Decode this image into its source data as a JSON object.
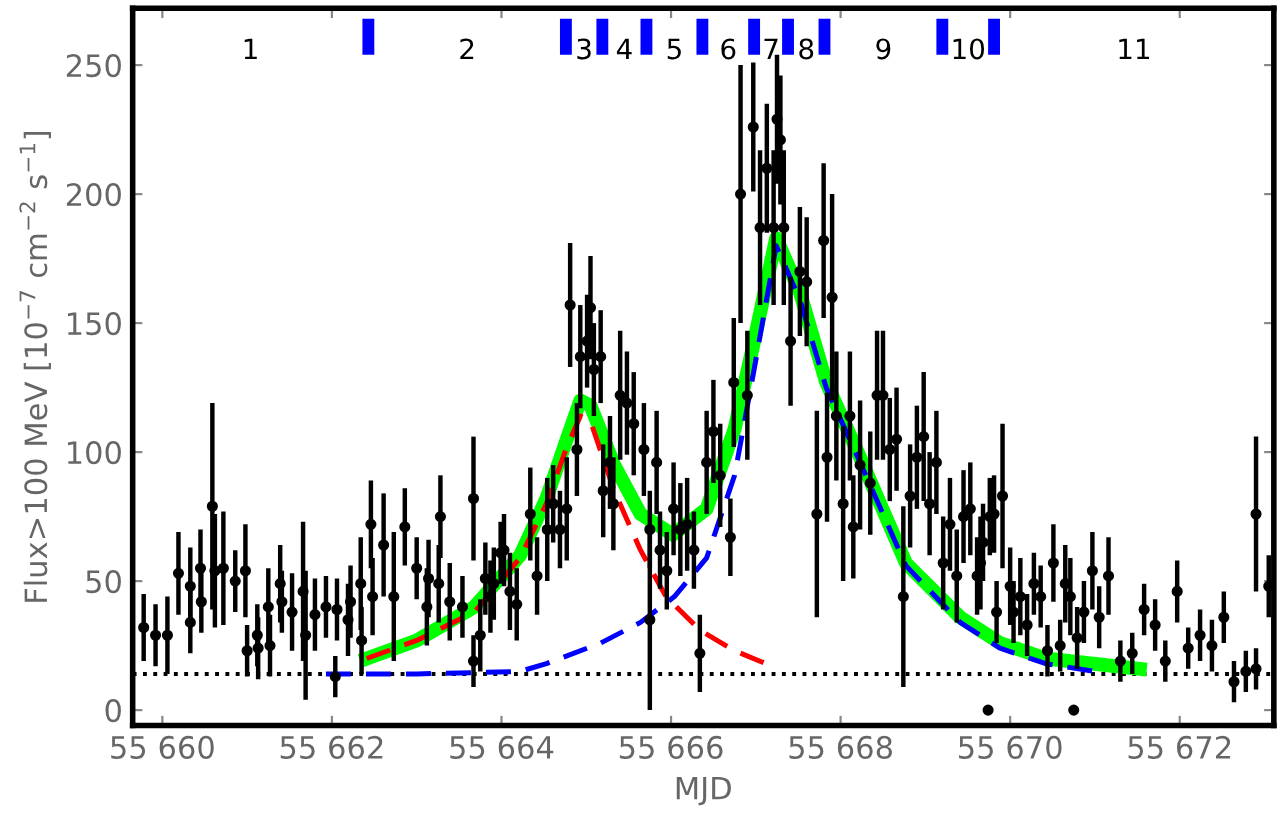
{
  "chart_data": {
    "type": "scatter",
    "xlabel": "MJD",
    "ylabel": "Flux>100 MeV [10$^{−7}$ cm$^{−2}$ s$^{−1}$]",
    "xlim": [
      55659.65,
      55673.11
    ],
    "ylim": [
      -6,
      272
    ],
    "xticks": [
      {
        "value": 55660,
        "label": "55 660"
      },
      {
        "value": 55662,
        "label": "55 662"
      },
      {
        "value": 55664,
        "label": "55 664"
      },
      {
        "value": 55666,
        "label": "55 666"
      },
      {
        "value": 55668,
        "label": "55 668"
      },
      {
        "value": 55670,
        "label": "55 670"
      },
      {
        "value": 55672,
        "label": "55 672"
      }
    ],
    "yticks": [
      0,
      50,
      100,
      150,
      200,
      250
    ],
    "grid": false,
    "ref_lines": [
      {
        "axis": "y",
        "value": 14,
        "color": "#000000",
        "line_style": "dotted"
      }
    ],
    "annotations": [
      "1",
      "2",
      "3",
      "4",
      "5",
      "6",
      "7",
      "8",
      "9",
      "10",
      "11"
    ],
    "series": [
      {
        "type": "bar",
        "color": "#0000ff",
        "x": [
          55662.43,
          55664.76,
          55665.19,
          55665.71,
          55666.37,
          55666.98,
          55667.38,
          55667.81,
          55669.2,
          55669.81
        ],
        "base": [
          254,
          254,
          254,
          254,
          254,
          254,
          254,
          254,
          254,
          254
        ],
        "values": [
          14,
          14,
          14,
          14,
          14,
          14,
          14,
          14,
          14,
          14
        ]
      },
      {
        "color": "#000000",
        "x": [
          55659.78,
          55659.92,
          55660.06,
          55660.19,
          55660.33,
          55660.33,
          55660.45,
          55660.46,
          55660.59,
          55660.62,
          55660.72,
          55660.86,
          55660.98,
          55661.0,
          55661.12,
          55661.13,
          55661.25,
          55661.27,
          55661.39,
          55661.41,
          55661.53,
          55661.66,
          55661.69,
          55661.8,
          55661.93,
          55662.04,
          55662.06,
          55662.19,
          55662.22,
          55662.34,
          55662.35,
          55662.46,
          55662.48,
          55662.61,
          55662.73,
          55662.86,
          55663.0,
          55663.12,
          55663.14,
          55663.26,
          55663.28,
          55663.39,
          55663.54,
          55663.67,
          55663.67,
          55663.75,
          55663.81,
          55663.87,
          55663.91,
          55663.99,
          55664.03,
          55664.1,
          55664.18,
          55664.34,
          55664.42,
          55664.54,
          55664.61,
          55664.69,
          55664.77,
          55664.81,
          55664.89,
          55664.93,
          55665.01,
          55665.05,
          55665.09,
          55665.17,
          55665.2,
          55665.28,
          55665.32,
          55665.4,
          55665.48,
          55665.56,
          55665.68,
          55665.75,
          55665.75,
          55665.83,
          55665.87,
          55665.95,
          55666.03,
          55666.11,
          55666.19,
          55666.27,
          55666.34,
          55666.42,
          55666.5,
          55666.58,
          55666.7,
          55666.74,
          55666.82,
          55666.9,
          55666.97,
          55667.05,
          55667.13,
          55667.21,
          55667.25,
          55667.29,
          55667.33,
          55667.41,
          55667.52,
          55667.6,
          55667.72,
          55667.8,
          55667.84,
          55667.9,
          55667.95,
          55668.03,
          55668.11,
          55668.15,
          55668.23,
          55668.35,
          55668.43,
          55668.5,
          55668.58,
          55668.66,
          55668.74,
          55668.82,
          55668.9,
          55668.98,
          55669.05,
          55669.13,
          55669.21,
          55669.29,
          55669.37,
          55669.45,
          55669.53,
          55669.61,
          55669.65,
          55669.68,
          55669.76,
          55669.81,
          55669.84,
          55669.91,
          55670.0,
          55670.04,
          55670.12,
          55670.2,
          55670.28,
          55670.36,
          55670.44,
          55670.51,
          55670.59,
          55670.65,
          55670.71,
          55670.79,
          55670.87,
          55670.97,
          55671.05,
          55671.16,
          55671.3,
          55671.44,
          55671.58,
          55671.71,
          55671.83,
          55671.97,
          55672.1,
          55672.24,
          55672.38,
          55672.52,
          55672.64,
          55672.78,
          55672.9,
          55672.9,
          55673.05
        ],
        "values": [
          32,
          29,
          29,
          53,
          48,
          34,
          55,
          42,
          79,
          54,
          55,
          50,
          54,
          23,
          29,
          24,
          40,
          25,
          49,
          42,
          38,
          46,
          29,
          37,
          40,
          13,
          39,
          35,
          42,
          49,
          27,
          72,
          44,
          64,
          44,
          71,
          55,
          40,
          51,
          49,
          75,
          42,
          40,
          82,
          19,
          29,
          51,
          44,
          49,
          61,
          62,
          46,
          41,
          76,
          52,
          70,
          80,
          70,
          78,
          157,
          101,
          137,
          143,
          156,
          132,
          137,
          85,
          96,
          80,
          122,
          119,
          111,
          101,
          70,
          35,
          96,
          62,
          54,
          78,
          70,
          72,
          62,
          22,
          96,
          108,
          91,
          67,
          127,
          200,
          122,
          226,
          187,
          210,
          187,
          229,
          221,
          187,
          143,
          170,
          166,
          76,
          182,
          98,
          160,
          114,
          80,
          114,
          71,
          95,
          88,
          122,
          122,
          101,
          105,
          44,
          83,
          98,
          106,
          80,
          96,
          57,
          72,
          52,
          75,
          78,
          52,
          57,
          65,
          75,
          76,
          38,
          83,
          48,
          38,
          44,
          33,
          49,
          44,
          23,
          57,
          25,
          49,
          44,
          28,
          38,
          54,
          36,
          52,
          19,
          22,
          39,
          33,
          19,
          46,
          24,
          29,
          25,
          36,
          11,
          15,
          76,
          16,
          48
        ],
        "errors": [
          13,
          12,
          15,
          16,
          15,
          12,
          15,
          12,
          40,
          22,
          22,
          12,
          18,
          10,
          12,
          12,
          15,
          12,
          15,
          12,
          15,
          27,
          25,
          14,
          12,
          8,
          12,
          14,
          14,
          18,
          13,
          17,
          15,
          20,
          25,
          15,
          12,
          15,
          15,
          15,
          16,
          15,
          12,
          24,
          10,
          14,
          14,
          14,
          14,
          12,
          14,
          15,
          14,
          18,
          15,
          20,
          15,
          15,
          20,
          24,
          18,
          20,
          18,
          20,
          18,
          18,
          18,
          18,
          18,
          25,
          20,
          20,
          18,
          15,
          35,
          20,
          15,
          15,
          18,
          18,
          18,
          15,
          15,
          20,
          20,
          20,
          15,
          25,
          50,
          25,
          25,
          30,
          25,
          30,
          25,
          25,
          30,
          25,
          25,
          25,
          40,
          30,
          25,
          40,
          25,
          30,
          25,
          20,
          25,
          20,
          25,
          25,
          20,
          20,
          35,
          20,
          20,
          25,
          20,
          20,
          18,
          18,
          18,
          18,
          18,
          15,
          18,
          15,
          15,
          15,
          12,
          28,
          15,
          12,
          15,
          12,
          12,
          12,
          10,
          15,
          10,
          15,
          15,
          12,
          12,
          15,
          12,
          15,
          8,
          8,
          10,
          10,
          8,
          12,
          8,
          10,
          10,
          10,
          8,
          8,
          30,
          8,
          12
        ]
      },
      {
        "color": "#000000",
        "x": [
          55669.74,
          55670.75
        ],
        "values": [
          0,
          0
        ]
      },
      {
        "type": "line",
        "color": "#00ff00",
        "line_style": "solid",
        "x": [
          55662.41,
          55663.0,
          55663.68,
          55664.22,
          55664.53,
          55664.76,
          55664.93,
          55665.05,
          55665.33,
          55665.64,
          55666.02,
          55666.42,
          55666.75,
          55666.98,
          55667.24,
          55667.52,
          55667.83,
          55668.23,
          55668.77,
          55669.41,
          55669.88,
          55670.42,
          55671.53
        ],
        "values": [
          20,
          27,
          40,
          60,
          82,
          104,
          120,
          118,
          95,
          76,
          68,
          78,
          109,
          143,
          183,
          162,
          127,
          98,
          57,
          36,
          26,
          20,
          16
        ]
      },
      {
        "type": "line",
        "color": "#ff0000",
        "line_style": "dashed",
        "x": [
          55662.41,
          55663.0,
          55663.68,
          55664.22,
          55664.53,
          55664.76,
          55664.93,
          55665.05,
          55665.33,
          55665.64,
          55665.94,
          55666.34,
          55666.75,
          55667.12
        ],
        "values": [
          20,
          27,
          38,
          59,
          80,
          101,
          114,
          112,
          85,
          62,
          44,
          31,
          23,
          18
        ]
      },
      {
        "type": "line",
        "color": "#0000ff",
        "line_style": "dashed",
        "x": [
          55661.93,
          55663.0,
          55664.22,
          55664.53,
          55665.17,
          55665.64,
          55666.04,
          55666.42,
          55666.75,
          55666.98,
          55667.24,
          55667.52,
          55667.83,
          55668.23,
          55668.77,
          55669.41,
          55669.88,
          55670.42,
          55670.99
        ],
        "values": [
          14,
          14,
          15,
          18,
          26,
          34,
          44,
          59,
          91,
          132,
          180,
          159,
          125,
          96,
          56,
          34,
          24,
          18,
          15
        ]
      }
    ]
  }
}
